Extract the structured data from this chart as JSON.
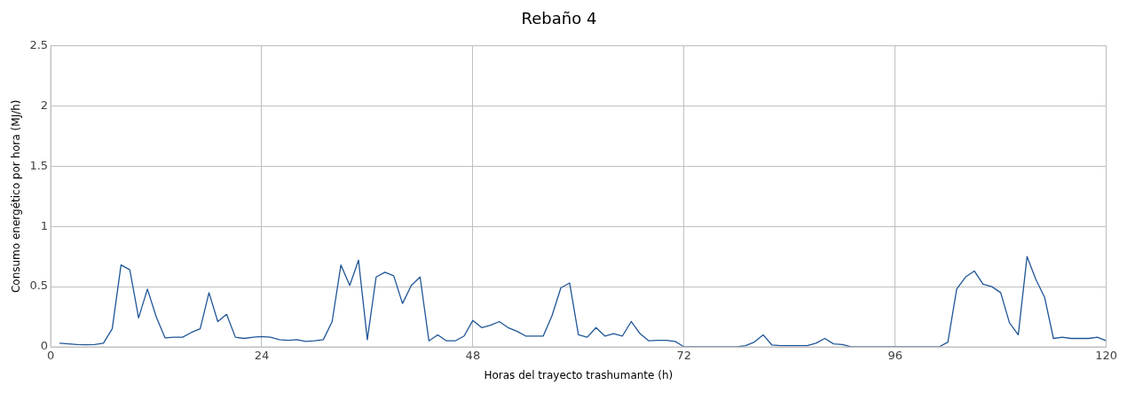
{
  "chart_data": {
    "type": "line",
    "title": "Rebaño 4",
    "xlabel": "Horas del trayecto trashumante (h)",
    "ylabel": "Consumo energético por hora (MJ/h)",
    "x": [
      1,
      2,
      3,
      4,
      5,
      6,
      7,
      8,
      9,
      10,
      11,
      12,
      13,
      14,
      15,
      16,
      17,
      18,
      19,
      20,
      21,
      22,
      23,
      24,
      25,
      26,
      27,
      28,
      29,
      30,
      31,
      32,
      33,
      34,
      35,
      36,
      37,
      38,
      39,
      40,
      41,
      42,
      43,
      44,
      45,
      46,
      47,
      48,
      49,
      50,
      51,
      52,
      53,
      54,
      55,
      56,
      57,
      58,
      59,
      60,
      61,
      62,
      63,
      64,
      65,
      66,
      67,
      68,
      69,
      70,
      71,
      72,
      73,
      74,
      75,
      76,
      77,
      78,
      79,
      80,
      81,
      82,
      83,
      84,
      85,
      86,
      87,
      88,
      89,
      90,
      91,
      92,
      93,
      94,
      95,
      96,
      97,
      98,
      99,
      100,
      101,
      102,
      103,
      104,
      105,
      106,
      107,
      108,
      109,
      110,
      111,
      112,
      113,
      114,
      115,
      116,
      117,
      118,
      119,
      120
    ],
    "series": [
      {
        "color": "#1f5597",
        "values": [
          0.03,
          0.025,
          0.02,
          0.018,
          0.02,
          0.03,
          0.15,
          0.68,
          0.64,
          0.24,
          0.48,
          0.25,
          0.075,
          0.08,
          0.08,
          0.12,
          0.15,
          0.45,
          0.21,
          0.27,
          0.08,
          0.07,
          0.08,
          0.085,
          0.08,
          0.06,
          0.055,
          0.06,
          0.045,
          0.05,
          0.06,
          0.21,
          0.68,
          0.51,
          0.72,
          0.06,
          0.58,
          0.62,
          0.59,
          0.36,
          0.51,
          0.58,
          0.05,
          0.1,
          0.05,
          0.05,
          0.09,
          0.22,
          0.16,
          0.18,
          0.21,
          0.16,
          0.13,
          0.09,
          0.09,
          0.09,
          0.26,
          0.49,
          0.53,
          0.1,
          0.08,
          0.16,
          0.09,
          0.11,
          0.09,
          0.21,
          0.11,
          0.05,
          0.055,
          0.055,
          0.045,
          0,
          0,
          0,
          0,
          0,
          0,
          0,
          0.01,
          0.04,
          0.1,
          0.015,
          0.01,
          0.01,
          0.01,
          0.01,
          0.03,
          0.07,
          0.025,
          0.02,
          0,
          0,
          0,
          0,
          0,
          0,
          0,
          0,
          0,
          0,
          0,
          0.04,
          0.48,
          0.58,
          0.63,
          0.52,
          0.5,
          0.45,
          0.2,
          0.1,
          0.75,
          0.56,
          0.41,
          0.07,
          0.08,
          0.07,
          0.07,
          0.07,
          0.08,
          0.05
        ]
      }
    ],
    "xlim": [
      0,
      120
    ],
    "xticks": [
      0,
      24,
      48,
      72,
      96,
      120
    ],
    "ylim": [
      0,
      2.5
    ],
    "yticks": [
      0,
      0.5,
      1,
      1.5,
      2,
      2.5
    ],
    "grid": true,
    "legend": false,
    "marker": "none",
    "line_style": "solid"
  }
}
